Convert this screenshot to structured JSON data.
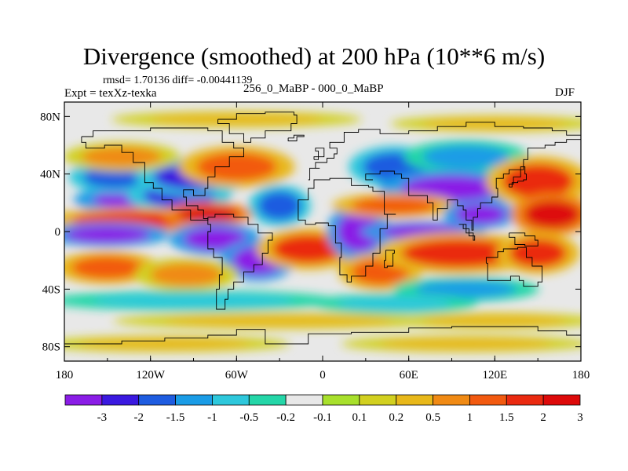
{
  "chart_data": {
    "type": "heatmap",
    "title": "Divergence (smoothed) at 200 hPa (10**6 m/s)",
    "stats_text": "rmsd= 1.70136 diff= -0.00441139",
    "expt_text": "Expt = texXz-texka",
    "subtitle": "256_0_MaBP - 000_0_MaBP",
    "season": "DJF",
    "xlim": [
      -180,
      180
    ],
    "ylim": [
      -90,
      90
    ],
    "x_ticks": [
      {
        "value": -180,
        "label": "180"
      },
      {
        "value": -120,
        "label": "120W"
      },
      {
        "value": -60,
        "label": "60W"
      },
      {
        "value": 0,
        "label": "0"
      },
      {
        "value": 60,
        "label": "60E"
      },
      {
        "value": 120,
        "label": "120E"
      },
      {
        "value": 180,
        "label": "180"
      }
    ],
    "y_ticks": [
      {
        "value": 80,
        "label": "80N"
      },
      {
        "value": 40,
        "label": "40N"
      },
      {
        "value": 0,
        "label": "0"
      },
      {
        "value": -40,
        "label": "40S"
      },
      {
        "value": -80,
        "label": "80S"
      }
    ],
    "colorbar": {
      "labels": [
        "-3",
        "-2",
        "-1.5",
        "-1",
        "-0.5",
        "-0.2",
        "-0.1",
        "0.1",
        "0.2",
        "0.5",
        "1",
        "1.5",
        "2",
        "3"
      ],
      "colors": [
        "#8a1de6",
        "#3a19e0",
        "#1e5ce0",
        "#1a9ce6",
        "#2ec8dc",
        "#24d6a8",
        "#e8e8e8",
        "#a8e02c",
        "#d2d020",
        "#e8b81a",
        "#f08a14",
        "#f25a10",
        "#ea2a10",
        "#dd0a0a"
      ]
    },
    "features": [
      {
        "name": "neg-w-pacific-north",
        "lon": -130,
        "lat": 22,
        "rx": 30,
        "ry": 7,
        "level": -3
      },
      {
        "name": "neg-c-pacific-north",
        "lon": -100,
        "lat": 25,
        "rx": 25,
        "ry": 8,
        "level": -2
      },
      {
        "name": "neg-npac-west",
        "lon": -145,
        "lat": 38,
        "rx": 22,
        "ry": 8,
        "level": -1.5
      },
      {
        "name": "neg-n-america",
        "lon": -90,
        "lat": 38,
        "rx": 28,
        "ry": 9,
        "level": -2
      },
      {
        "name": "pos-n-pacific",
        "lon": -140,
        "lat": 52,
        "rx": 28,
        "ry": 7,
        "level": 1
      },
      {
        "name": "pos-n-america",
        "lon": -60,
        "lat": 45,
        "rx": 28,
        "ry": 10,
        "level": 1.5
      },
      {
        "name": "pos-tropic-pac",
        "lon": -130,
        "lat": 8,
        "rx": 45,
        "ry": 6,
        "level": 2
      },
      {
        "name": "pos-tropic-pac-2",
        "lon": -80,
        "lat": 12,
        "rx": 22,
        "ry": 6,
        "level": 3
      },
      {
        "name": "neg-equator-pac",
        "lon": -150,
        "lat": -2,
        "rx": 30,
        "ry": 6,
        "level": -3
      },
      {
        "name": "neg-s-america",
        "lon": -75,
        "lat": -5,
        "rx": 22,
        "ry": 8,
        "level": -3
      },
      {
        "name": "neg-s-america-2",
        "lon": -45,
        "lat": -20,
        "rx": 18,
        "ry": 10,
        "level": -3
      },
      {
        "name": "pos-s-pacific",
        "lon": -150,
        "lat": -25,
        "rx": 25,
        "ry": 8,
        "level": 1.5
      },
      {
        "name": "pos-s-pac-2",
        "lon": -95,
        "lat": -30,
        "rx": 25,
        "ry": 8,
        "level": 1
      },
      {
        "name": "neg-atlantic",
        "lon": -30,
        "lat": 18,
        "rx": 15,
        "ry": 10,
        "level": -1.5
      },
      {
        "name": "pos-atlantic-eq",
        "lon": -10,
        "lat": -12,
        "rx": 25,
        "ry": 10,
        "level": 2
      },
      {
        "name": "neg-africa",
        "lon": 25,
        "lat": 0,
        "rx": 15,
        "ry": 14,
        "level": -3
      },
      {
        "name": "pos-s-africa",
        "lon": 40,
        "lat": -28,
        "rx": 20,
        "ry": 9,
        "level": 1.5
      },
      {
        "name": "neg-europe",
        "lon": 50,
        "lat": 45,
        "rx": 22,
        "ry": 10,
        "level": -1.5
      },
      {
        "name": "neg-asia-north",
        "lon": 100,
        "lat": 52,
        "rx": 30,
        "ry": 8,
        "level": -1
      },
      {
        "name": "neg-asia",
        "lon": 90,
        "lat": 30,
        "rx": 35,
        "ry": 9,
        "level": -3
      },
      {
        "name": "pos-asia",
        "lon": 50,
        "lat": 18,
        "rx": 30,
        "ry": 6,
        "level": 1.5
      },
      {
        "name": "pos-east-asia",
        "lon": 150,
        "lat": 35,
        "rx": 25,
        "ry": 12,
        "level": 2
      },
      {
        "name": "neg-indian-ocean",
        "lon": 70,
        "lat": 0,
        "rx": 30,
        "ry": 5,
        "level": -3
      },
      {
        "name": "neg-se-asia",
        "lon": 110,
        "lat": 12,
        "rx": 18,
        "ry": 7,
        "level": -3
      },
      {
        "name": "pos-w-pacific",
        "lon": 160,
        "lat": 12,
        "rx": 20,
        "ry": 10,
        "level": 3
      },
      {
        "name": "pos-indian-s",
        "lon": 95,
        "lat": -15,
        "rx": 40,
        "ry": 10,
        "level": 2
      },
      {
        "name": "pos-australia",
        "lon": 150,
        "lat": -15,
        "rx": 20,
        "ry": 10,
        "level": 2
      },
      {
        "name": "neg-s-indian",
        "lon": 100,
        "lat": -40,
        "rx": 35,
        "ry": 6,
        "level": -1
      },
      {
        "name": "neg-southern",
        "lon": -90,
        "lat": -48,
        "rx": 70,
        "ry": 5,
        "level": -0.5
      },
      {
        "name": "neg-southern-2",
        "lon": 50,
        "lat": -50,
        "rx": 40,
        "ry": 5,
        "level": -0.5
      },
      {
        "name": "pos-south-band",
        "lon": -30,
        "lat": -62,
        "rx": 80,
        "ry": 4,
        "level": 0.5
      },
      {
        "name": "pos-south-band-2",
        "lon": 120,
        "lat": -62,
        "rx": 50,
        "ry": 4,
        "level": 0.5
      },
      {
        "name": "pos-antarctic",
        "lon": -110,
        "lat": -78,
        "rx": 60,
        "ry": 4,
        "level": 0.5
      },
      {
        "name": "pos-antarctic-2",
        "lon": 100,
        "lat": -78,
        "rx": 60,
        "ry": 4,
        "level": 0.5
      },
      {
        "name": "pos-arctic",
        "lon": -60,
        "lat": 78,
        "rx": 60,
        "ry": 4,
        "level": 0.5
      },
      {
        "name": "pos-arctic-2",
        "lon": 120,
        "lat": 75,
        "rx": 50,
        "ry": 4,
        "level": 0.5
      }
    ]
  }
}
